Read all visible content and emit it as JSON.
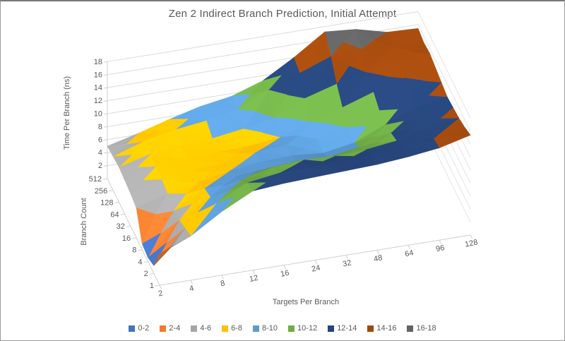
{
  "title": "Zen 2 Indirect Branch Prediction, Initial Attempt",
  "chart_data": {
    "type": "surface",
    "title": "Zen 2 Indirect Branch Prediction, Initial Attempt",
    "x_label": "Targets Per Branch",
    "x_categories": [
      2,
      4,
      8,
      12,
      16,
      24,
      32,
      48,
      64,
      96,
      128
    ],
    "y_label": "Branch Count",
    "y_categories": [
      1,
      2,
      4,
      8,
      16,
      32,
      64,
      128,
      256,
      512
    ],
    "z_label": "Time Per Branch (ns)",
    "z_ticks": [
      2,
      4,
      6,
      8,
      10,
      12,
      14,
      16,
      18
    ],
    "z_range": [
      0,
      18
    ],
    "grid": "on",
    "legend_position": "bottom",
    "bands": [
      {
        "label": "0-2",
        "color": "#4472C4"
      },
      {
        "label": "2-4",
        "color": "#ED7D31"
      },
      {
        "label": "4-6",
        "color": "#A5A5A5"
      },
      {
        "label": "6-8",
        "color": "#FFC000"
      },
      {
        "label": "8-10",
        "color": "#5B9BD5"
      },
      {
        "label": "10-12",
        "color": "#70AD47"
      },
      {
        "label": "12-14",
        "color": "#264478"
      },
      {
        "label": "14-16",
        "color": "#9E480E"
      },
      {
        "label": "16-18",
        "color": "#636363"
      }
    ],
    "values_note": "rows = branch count (front 1 to back 512); cols = targets per branch (2 to 128); unit ns, estimated from surface bands",
    "values": [
      [
        4.8,
        6.8,
        9.8,
        12.2,
        12.6,
        12.8,
        13.0,
        13.2,
        13.6,
        14.2,
        15.4
      ],
      [
        1.2,
        6.2,
        9.2,
        11.6,
        12.3,
        12.5,
        12.4,
        12.6,
        13.0,
        13.8,
        14.8
      ],
      [
        0.6,
        5.6,
        8.4,
        10.2,
        11.4,
        11.8,
        11.6,
        11.8,
        12.4,
        13.4,
        14.4
      ],
      [
        0.9,
        5.2,
        7.9,
        8.9,
        9.4,
        9.8,
        9.6,
        10.4,
        11.8,
        13.2,
        14.2
      ],
      [
        4.6,
        6.0,
        7.0,
        8.0,
        8.6,
        8.8,
        8.4,
        9.2,
        11.2,
        13.0,
        14.0
      ],
      [
        5.0,
        6.4,
        6.9,
        7.4,
        8.2,
        8.6,
        8.8,
        9.8,
        11.6,
        13.4,
        14.4
      ],
      [
        5.2,
        6.6,
        7.0,
        7.2,
        7.4,
        8.0,
        9.6,
        11.0,
        12.6,
        14.0,
        14.8
      ],
      [
        5.4,
        6.6,
        7.2,
        7.5,
        8.2,
        9.2,
        11.4,
        12.8,
        13.8,
        14.6,
        15.2
      ],
      [
        5.2,
        6.8,
        7.8,
        8.4,
        9.4,
        11.6,
        13.4,
        15.2,
        15.6,
        15.2,
        15.0
      ],
      [
        5.0,
        6.2,
        7.6,
        8.8,
        9.6,
        11.2,
        14.0,
        17.2,
        16.8,
        15.6,
        15.4
      ]
    ]
  }
}
